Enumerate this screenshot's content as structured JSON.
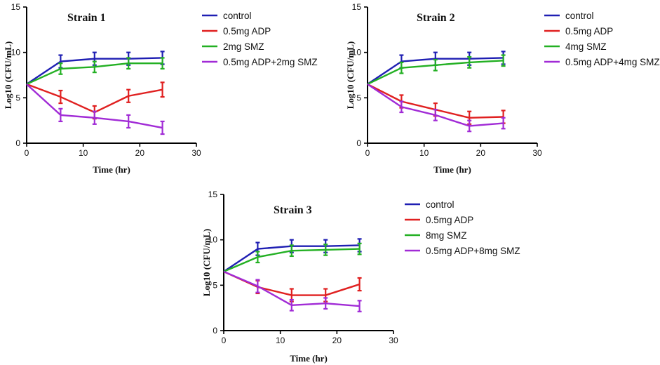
{
  "colors": {
    "control": "#1f1fb3",
    "adp": "#e02020",
    "smz": "#23b023",
    "combo": "#a12bd6"
  },
  "chart_data": [
    {
      "type": "line",
      "title": "Strain 1",
      "xlabel": "Time (hr)",
      "ylabel": "Log10 (CFU/mL)",
      "xlim": [
        0,
        30
      ],
      "ylim": [
        0,
        15
      ],
      "xticks": [
        0,
        10,
        20,
        30
      ],
      "yticks": [
        0,
        5,
        10,
        15
      ],
      "x": [
        0,
        6,
        12,
        18,
        24
      ],
      "series": [
        {
          "name": "control",
          "color": "#1f1fb3",
          "values": [
            6.5,
            9.0,
            9.3,
            9.3,
            9.4
          ],
          "errors": [
            0,
            0.7,
            0.7,
            0.7,
            0.7
          ]
        },
        {
          "name": "0.5mg ADP",
          "color": "#e02020",
          "values": [
            6.5,
            5.1,
            3.4,
            5.2,
            5.9
          ],
          "errors": [
            0,
            0.7,
            0.7,
            0.7,
            0.8
          ]
        },
        {
          "name": "2mg SMZ",
          "color": "#23b023",
          "values": [
            6.5,
            8.2,
            8.4,
            8.8,
            8.8
          ],
          "errors": [
            0,
            0.6,
            0.6,
            0.6,
            0.6
          ]
        },
        {
          "name": "0.5mg ADP+2mg SMZ",
          "color": "#a12bd6",
          "values": [
            6.5,
            3.1,
            2.8,
            2.4,
            1.7
          ],
          "errors": [
            0,
            0.7,
            0.7,
            0.7,
            0.7
          ]
        }
      ]
    },
    {
      "type": "line",
      "title": "Strain 2",
      "xlabel": "Time (hr)",
      "ylabel": "Log10 (CFU/mL)",
      "xlim": [
        0,
        30
      ],
      "ylim": [
        0,
        15
      ],
      "xticks": [
        0,
        10,
        20,
        30
      ],
      "yticks": [
        0,
        5,
        10,
        15
      ],
      "x": [
        0,
        6,
        12,
        18,
        24
      ],
      "series": [
        {
          "name": "control",
          "color": "#1f1fb3",
          "values": [
            6.5,
            9.0,
            9.3,
            9.3,
            9.4
          ],
          "errors": [
            0,
            0.7,
            0.7,
            0.7,
            0.7
          ]
        },
        {
          "name": "0.5mg ADP",
          "color": "#e02020",
          "values": [
            6.5,
            4.6,
            3.7,
            2.8,
            2.9
          ],
          "errors": [
            0,
            0.7,
            0.7,
            0.7,
            0.7
          ]
        },
        {
          "name": "4mg SMZ",
          "color": "#23b023",
          "values": [
            6.5,
            8.3,
            8.6,
            8.9,
            9.1
          ],
          "errors": [
            0,
            0.6,
            0.6,
            0.6,
            0.6
          ]
        },
        {
          "name": "0.5mg ADP+4mg SMZ",
          "color": "#a12bd6",
          "values": [
            6.5,
            4.0,
            3.1,
            1.9,
            2.2
          ],
          "errors": [
            0,
            0.6,
            0.6,
            0.6,
            0.6
          ]
        }
      ]
    },
    {
      "type": "line",
      "title": "Strain 3",
      "xlabel": "Time (hr)",
      "ylabel": "Log10 (CFU/mL)",
      "xlim": [
        0,
        30
      ],
      "ylim": [
        0,
        15
      ],
      "xticks": [
        0,
        10,
        20,
        30
      ],
      "yticks": [
        0,
        5,
        10,
        15
      ],
      "x": [
        0,
        6,
        12,
        18,
        24
      ],
      "series": [
        {
          "name": "control",
          "color": "#1f1fb3",
          "values": [
            6.5,
            9.0,
            9.3,
            9.3,
            9.4
          ],
          "errors": [
            0,
            0.7,
            0.7,
            0.7,
            0.7
          ]
        },
        {
          "name": "0.5mg ADP",
          "color": "#e02020",
          "values": [
            6.5,
            4.8,
            3.9,
            3.9,
            5.1
          ],
          "errors": [
            0,
            0.7,
            0.7,
            0.7,
            0.7
          ]
        },
        {
          "name": "8mg SMZ",
          "color": "#23b023",
          "values": [
            6.5,
            8.1,
            8.8,
            8.9,
            9.0
          ],
          "errors": [
            0,
            0.6,
            0.6,
            0.6,
            0.6
          ]
        },
        {
          "name": "0.5mg ADP+8mg SMZ",
          "color": "#a12bd6",
          "values": [
            6.5,
            4.9,
            2.8,
            3.0,
            2.7
          ],
          "errors": [
            0,
            0.7,
            0.6,
            0.6,
            0.6
          ]
        }
      ]
    }
  ]
}
